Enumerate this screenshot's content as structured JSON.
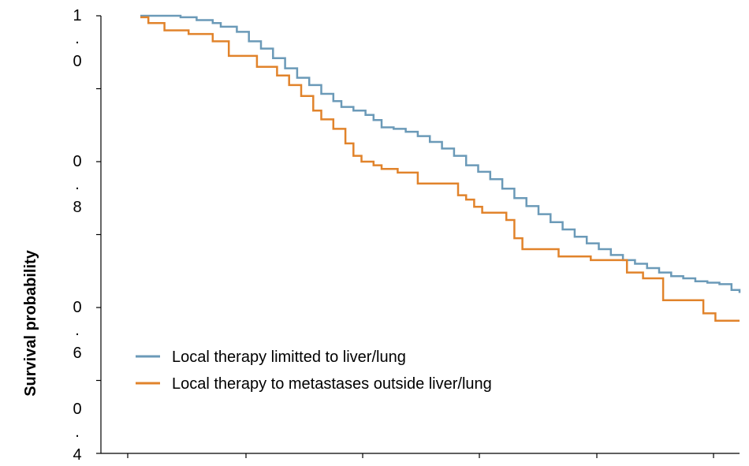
{
  "chart_data": {
    "type": "line",
    "title": "",
    "xlabel": "",
    "ylabel": "Survival probability",
    "ylim": [
      0.4,
      1.0
    ],
    "y_ticks": [
      {
        "value": 1.0,
        "label": "1.0"
      },
      {
        "value": 0.8,
        "label": "0.8"
      },
      {
        "value": 0.6,
        "label": "0.6"
      },
      {
        "value": 0.4,
        "label": "0.4"
      }
    ],
    "x_ticks_labeled": false,
    "grid": false,
    "legend_position": "lower-left",
    "series": [
      {
        "name": "Local therapy limitted to liver/lung",
        "color": "#6b9ab8",
        "points": [
          [
            0.0,
            1.0
          ],
          [
            0.07,
            1.0
          ],
          [
            0.1,
            0.998
          ],
          [
            0.14,
            0.994
          ],
          [
            0.18,
            0.99
          ],
          [
            0.2,
            0.985
          ],
          [
            0.24,
            0.978
          ],
          [
            0.27,
            0.965
          ],
          [
            0.3,
            0.955
          ],
          [
            0.33,
            0.942
          ],
          [
            0.36,
            0.928
          ],
          [
            0.39,
            0.915
          ],
          [
            0.42,
            0.905
          ],
          [
            0.45,
            0.893
          ],
          [
            0.48,
            0.883
          ],
          [
            0.5,
            0.875
          ],
          [
            0.53,
            0.87
          ],
          [
            0.56,
            0.864
          ],
          [
            0.58,
            0.857
          ],
          [
            0.6,
            0.847
          ],
          [
            0.63,
            0.845
          ],
          [
            0.66,
            0.841
          ],
          [
            0.69,
            0.835
          ],
          [
            0.72,
            0.827
          ],
          [
            0.75,
            0.818
          ],
          [
            0.78,
            0.808
          ],
          [
            0.81,
            0.795
          ],
          [
            0.84,
            0.786
          ],
          [
            0.87,
            0.776
          ],
          [
            0.9,
            0.763
          ],
          [
            0.93,
            0.75
          ],
          [
            0.96,
            0.739
          ],
          [
            0.99,
            0.728
          ],
          [
            1.02,
            0.717
          ],
          [
            1.05,
            0.707
          ],
          [
            1.08,
            0.697
          ],
          [
            1.11,
            0.688
          ],
          [
            1.14,
            0.68
          ],
          [
            1.17,
            0.672
          ],
          [
            1.2,
            0.665
          ],
          [
            1.23,
            0.66
          ],
          [
            1.26,
            0.654
          ],
          [
            1.29,
            0.648
          ],
          [
            1.32,
            0.643
          ],
          [
            1.35,
            0.64
          ],
          [
            1.38,
            0.636
          ],
          [
            1.41,
            0.634
          ],
          [
            1.44,
            0.632
          ],
          [
            1.47,
            0.624
          ],
          [
            1.49,
            0.62
          ]
        ]
      },
      {
        "name": "Local therapy to metastases outside liver/lung",
        "color": "#e1832b",
        "points": [
          [
            0.0,
            0.998
          ],
          [
            0.02,
            0.99
          ],
          [
            0.06,
            0.98
          ],
          [
            0.12,
            0.975
          ],
          [
            0.18,
            0.965
          ],
          [
            0.22,
            0.945
          ],
          [
            0.26,
            0.945
          ],
          [
            0.29,
            0.93
          ],
          [
            0.32,
            0.93
          ],
          [
            0.34,
            0.918
          ],
          [
            0.37,
            0.905
          ],
          [
            0.4,
            0.89
          ],
          [
            0.43,
            0.87
          ],
          [
            0.45,
            0.858
          ],
          [
            0.48,
            0.845
          ],
          [
            0.51,
            0.825
          ],
          [
            0.53,
            0.808
          ],
          [
            0.55,
            0.8
          ],
          [
            0.58,
            0.795
          ],
          [
            0.6,
            0.79
          ],
          [
            0.64,
            0.785
          ],
          [
            0.68,
            0.785
          ],
          [
            0.69,
            0.77
          ],
          [
            0.73,
            0.77
          ],
          [
            0.76,
            0.77
          ],
          [
            0.79,
            0.754
          ],
          [
            0.81,
            0.748
          ],
          [
            0.83,
            0.738
          ],
          [
            0.85,
            0.73
          ],
          [
            0.87,
            0.73
          ],
          [
            0.9,
            0.73
          ],
          [
            0.91,
            0.72
          ],
          [
            0.93,
            0.695
          ],
          [
            0.95,
            0.68
          ],
          [
            0.98,
            0.68
          ],
          [
            1.01,
            0.68
          ],
          [
            1.04,
            0.67
          ],
          [
            1.08,
            0.67
          ],
          [
            1.12,
            0.665
          ],
          [
            1.16,
            0.665
          ],
          [
            1.2,
            0.665
          ],
          [
            1.21,
            0.648
          ],
          [
            1.25,
            0.64
          ],
          [
            1.29,
            0.64
          ],
          [
            1.3,
            0.61
          ],
          [
            1.34,
            0.61
          ],
          [
            1.37,
            0.61
          ],
          [
            1.4,
            0.592
          ],
          [
            1.43,
            0.582
          ],
          [
            1.46,
            0.582
          ],
          [
            1.49,
            0.582
          ]
        ]
      }
    ]
  }
}
